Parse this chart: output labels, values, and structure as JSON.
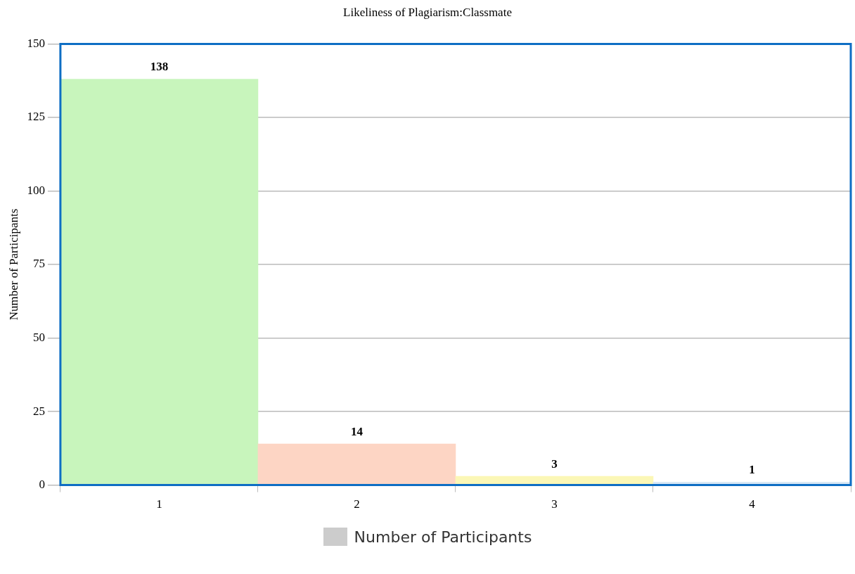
{
  "chart_data": {
    "type": "bar",
    "title": "Likeliness of Plagiarism:Classmate",
    "ylabel": "Number of Participants",
    "categories": [
      "1",
      "2",
      "3",
      "4"
    ],
    "series": [
      {
        "name": "Number of Participants",
        "color": "#cccccc",
        "colors": [
          "#c8f5bc",
          "#fdd5c4",
          "#fbf7b6",
          "#d9e8f5"
        ],
        "values": [
          138,
          14,
          3,
          1
        ]
      }
    ],
    "ylim": [
      0,
      150
    ],
    "yticks": [
      0,
      25,
      50,
      75,
      100,
      125,
      150
    ],
    "grid": "y",
    "legend": "bottom",
    "data_labels": true
  }
}
